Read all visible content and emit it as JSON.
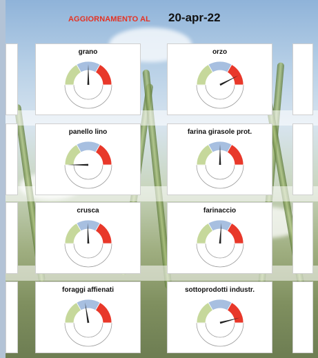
{
  "header": {
    "update_label": "AGGIORNAMENTO AL",
    "date": "20-apr-22"
  },
  "colors": {
    "segment_low": "#c6d89b",
    "segment_mid": "#a7bfe0",
    "segment_high": "#e8382a",
    "needle": "#222222",
    "title_accent": "#e53222"
  },
  "gauges": [
    {
      "name": "grano",
      "value": 0.5
    },
    {
      "name": "orzo",
      "value": 0.85
    },
    {
      "name": "panello lino",
      "value": 0.0
    },
    {
      "name": "farina girasole prot.",
      "value": 0.5
    },
    {
      "name": "crusca",
      "value": 0.49
    },
    {
      "name": "farinaccio",
      "value": 0.52
    },
    {
      "name": "foraggi affienati",
      "value": 0.45
    },
    {
      "name": "sottoprodotti industr.",
      "value": 0.92
    }
  ]
}
